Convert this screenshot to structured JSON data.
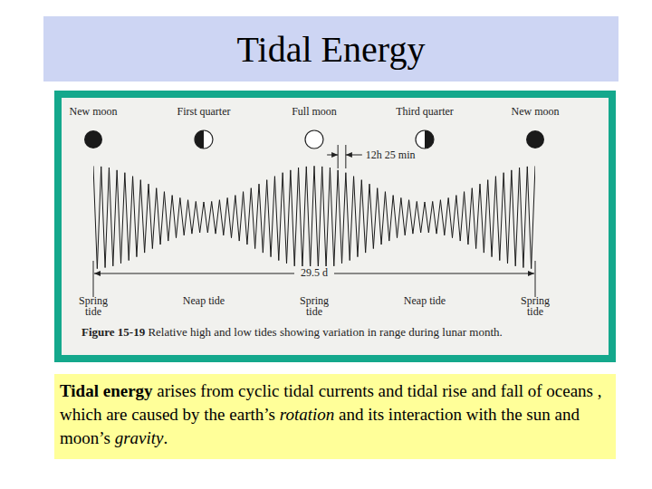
{
  "title": "Tidal Energy",
  "chart_data": {
    "type": "line",
    "color": "#1a1a1a",
    "grid": false,
    "tick_labels": false,
    "ylim": [
      -1.2,
      1.2
    ],
    "categories": [
      null,
      null,
      null,
      null,
      null,
      null,
      null,
      null,
      null,
      null,
      null,
      null,
      null,
      null,
      null,
      null,
      null,
      null,
      null,
      null,
      null,
      null,
      null,
      null,
      null,
      null,
      null,
      null,
      null,
      null,
      null,
      null,
      null,
      null,
      null,
      null,
      null,
      null,
      null,
      null,
      null,
      null,
      null,
      null,
      null,
      null,
      null,
      null,
      null,
      null,
      null,
      null,
      null,
      null,
      null,
      null,
      null,
      null,
      null,
      null,
      null,
      null,
      null,
      null,
      null,
      null,
      null,
      null,
      null,
      null,
      null,
      null,
      null,
      null,
      null,
      null,
      null,
      null,
      null,
      null,
      null,
      null,
      null,
      null,
      null,
      null,
      null,
      null,
      null,
      null,
      null,
      null,
      null,
      null,
      null,
      null,
      null,
      null,
      null,
      null,
      null,
      null,
      null,
      null,
      null,
      null,
      null,
      null,
      null,
      null,
      null,
      null,
      null
    ],
    "values": [
      1.0,
      -1.0,
      0.99,
      -0.98,
      0.97,
      -0.95,
      0.92,
      -0.9,
      0.87,
      -0.84,
      0.8,
      -0.77,
      0.73,
      -0.69,
      0.65,
      -0.61,
      0.57,
      -0.53,
      0.5,
      -0.46,
      0.43,
      -0.4,
      0.38,
      -0.35,
      0.34,
      -0.32,
      0.31,
      -0.3,
      0.3,
      -0.3,
      0.31,
      -0.32,
      0.34,
      -0.35,
      0.38,
      -0.4,
      0.43,
      -0.46,
      0.5,
      -0.53,
      0.57,
      -0.61,
      0.65,
      -0.69,
      0.73,
      -0.77,
      0.8,
      -0.84,
      0.87,
      -0.9,
      0.92,
      -0.95,
      0.97,
      -0.98,
      0.99,
      -1.0,
      1.0,
      -1.0,
      0.99,
      -0.98,
      0.97,
      -0.95,
      0.92,
      -0.9,
      0.87,
      -0.84,
      0.8,
      -0.77,
      0.73,
      -0.69,
      0.65,
      -0.61,
      0.57,
      -0.53,
      0.5,
      -0.46,
      0.43,
      -0.4,
      0.38,
      -0.35,
      0.34,
      -0.32,
      0.31,
      -0.3,
      0.3,
      -0.3,
      0.31,
      -0.32,
      0.34,
      -0.35,
      0.38,
      -0.4,
      0.43,
      -0.46,
      0.5,
      -0.53,
      0.57,
      -0.61,
      0.65,
      -0.69,
      0.73,
      -0.77,
      0.8,
      -0.84,
      0.87,
      -0.9,
      0.92,
      -0.95,
      0.97,
      -0.98,
      0.99,
      -1.0,
      1.0
    ],
    "annotations": {
      "phases": [
        "New moon",
        "First quarter",
        "Full moon",
        "Third quarter",
        "New moon"
      ],
      "tides": [
        "Spring tide",
        "Neap tide",
        "Spring tide",
        "Neap tide",
        "Spring tide"
      ],
      "period": "12h 25 min",
      "span": "29.5 d"
    },
    "caption": {
      "label": "Figure 15-19",
      "text": "Relative high and low tides showing variation in range during lunar month."
    }
  },
  "text": [
    {
      "text": "Tidal energy",
      "style": "bold"
    },
    {
      "text": " arises from cyclic tidal currents and tidal rise and fall of oceans , which are caused by the earth’s "
    },
    {
      "text": "rotation",
      "style": "italic"
    },
    {
      "text": " and its interaction with the sun and moon’s "
    },
    {
      "text": "gravity",
      "style": "italic"
    },
    {
      "text": "."
    }
  ]
}
